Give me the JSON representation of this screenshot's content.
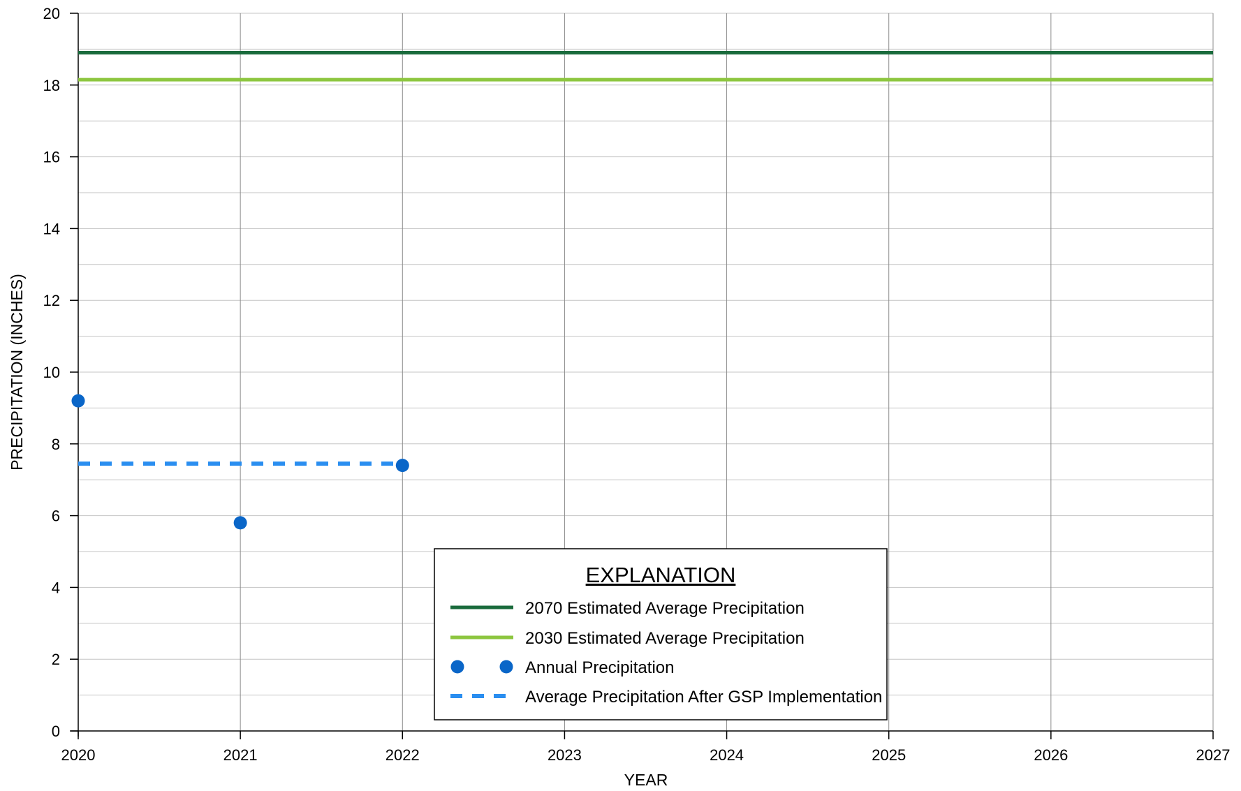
{
  "chart_data": {
    "type": "line",
    "title": "",
    "xlabel": "YEAR",
    "ylabel": "PRECIPITATION (INCHES)",
    "xlim": [
      2020,
      2027
    ],
    "ylim": [
      0,
      20
    ],
    "x_ticks": [
      "2020",
      "2021",
      "2022",
      "2023",
      "2024",
      "2025",
      "2026",
      "2027"
    ],
    "y_ticks": [
      "0",
      "2",
      "4",
      "6",
      "8",
      "10",
      "12",
      "14",
      "16",
      "18",
      "20"
    ],
    "grid": true,
    "series": [
      {
        "name": "2070 Estimated Average Precipitation",
        "kind": "line",
        "color": "#1a6b3c",
        "x": [
          2020,
          2027
        ],
        "y": [
          18.9,
          18.9
        ]
      },
      {
        "name": "2030 Estimated Average Precipitation",
        "kind": "line",
        "color": "#8dc63f",
        "x": [
          2020,
          2027
        ],
        "y": [
          18.15,
          18.15
        ]
      },
      {
        "name": "Annual Precipitation",
        "kind": "scatter",
        "color": "#0a66c8",
        "x": [
          2020,
          2021,
          2022
        ],
        "y": [
          9.2,
          5.8,
          7.4
        ]
      },
      {
        "name": "Average Precipitation After GSP Implementation",
        "kind": "dashed",
        "color": "#2a8ef0",
        "x": [
          2020,
          2022
        ],
        "y": [
          7.45,
          7.45
        ]
      }
    ],
    "legend": {
      "title": "EXPLANATION",
      "position": "bottom-center"
    }
  }
}
